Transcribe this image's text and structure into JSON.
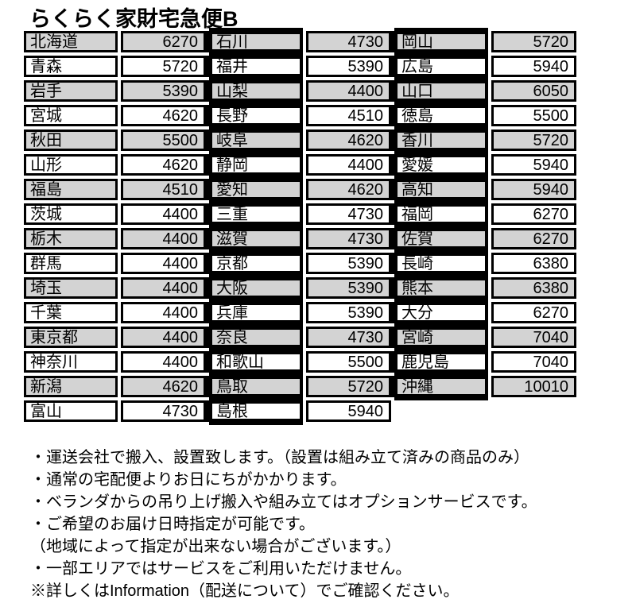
{
  "title": "らくらく家財宅急便B",
  "table": {
    "shade_color": "#d3d3d3",
    "border_color": "#000000",
    "groups": [
      {
        "rows": [
          {
            "pref": "北海道",
            "fee": 6270
          },
          {
            "pref": "青森",
            "fee": 5720
          },
          {
            "pref": "岩手",
            "fee": 5390
          },
          {
            "pref": "宮城",
            "fee": 4620
          },
          {
            "pref": "秋田",
            "fee": 5500
          },
          {
            "pref": "山形",
            "fee": 4620
          },
          {
            "pref": "福島",
            "fee": 4510
          },
          {
            "pref": "茨城",
            "fee": 4400
          },
          {
            "pref": "栃木",
            "fee": 4400
          },
          {
            "pref": "群馬",
            "fee": 4400
          },
          {
            "pref": "埼玉",
            "fee": 4400
          },
          {
            "pref": "千葉",
            "fee": 4400
          },
          {
            "pref": "東京都",
            "fee": 4400
          },
          {
            "pref": "神奈川",
            "fee": 4400
          },
          {
            "pref": "新潟",
            "fee": 4620
          },
          {
            "pref": "富山",
            "fee": 4730
          }
        ]
      },
      {
        "rows": [
          {
            "pref": "石川",
            "fee": 4730
          },
          {
            "pref": "福井",
            "fee": 5390
          },
          {
            "pref": "山梨",
            "fee": 4400
          },
          {
            "pref": "長野",
            "fee": 4510
          },
          {
            "pref": "岐阜",
            "fee": 4620
          },
          {
            "pref": "静岡",
            "fee": 4400
          },
          {
            "pref": "愛知",
            "fee": 4620
          },
          {
            "pref": "三重",
            "fee": 4730
          },
          {
            "pref": "滋賀",
            "fee": 4730
          },
          {
            "pref": "京都",
            "fee": 5390
          },
          {
            "pref": "大阪",
            "fee": 5390
          },
          {
            "pref": "兵庫",
            "fee": 5390
          },
          {
            "pref": "奈良",
            "fee": 4730
          },
          {
            "pref": "和歌山",
            "fee": 5500
          },
          {
            "pref": "鳥取",
            "fee": 5720
          },
          {
            "pref": "島根",
            "fee": 5940
          }
        ]
      },
      {
        "rows": [
          {
            "pref": "岡山",
            "fee": 5720
          },
          {
            "pref": "広島",
            "fee": 5940
          },
          {
            "pref": "山口",
            "fee": 6050
          },
          {
            "pref": "徳島",
            "fee": 5500
          },
          {
            "pref": "香川",
            "fee": 5720
          },
          {
            "pref": "愛媛",
            "fee": 5940
          },
          {
            "pref": "高知",
            "fee": 5940
          },
          {
            "pref": "福岡",
            "fee": 6270
          },
          {
            "pref": "佐賀",
            "fee": 6270
          },
          {
            "pref": "長崎",
            "fee": 6380
          },
          {
            "pref": "熊本",
            "fee": 6380
          },
          {
            "pref": "大分",
            "fee": 6270
          },
          {
            "pref": "宮崎",
            "fee": 7040
          },
          {
            "pref": "鹿児島",
            "fee": 7040
          },
          {
            "pref": "沖縄",
            "fee": 10010
          }
        ]
      }
    ]
  },
  "notes": [
    "・運送会社で搬入、設置致します。（設置は組み立て済みの商品のみ）",
    "・通常の宅配便よりお日にちがかかります。",
    "・ベランダからの吊り上げ搬入や組み立てはオプションサービスです。",
    "・ご希望のお届け日時指定が可能です。",
    "（地域によって指定が出来ない場合がございます。）",
    "・一部エリアではサービスをご利用いただけません。",
    "※詳しくはInformation（配送について）でご確認ください。"
  ]
}
